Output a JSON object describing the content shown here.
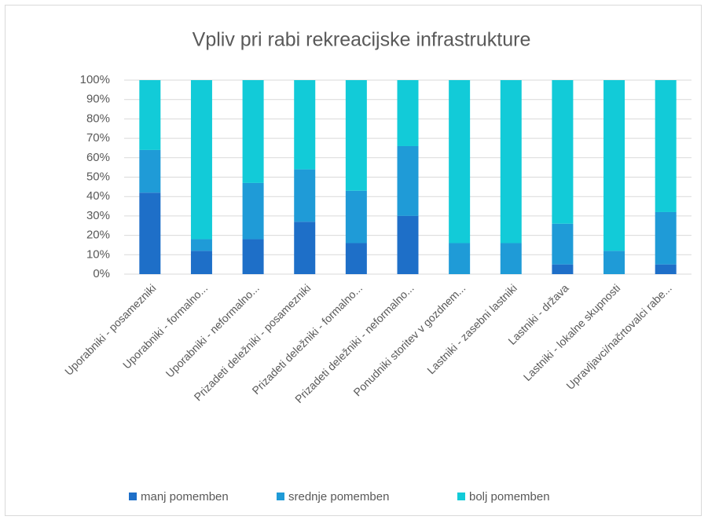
{
  "chart_data": {
    "type": "stacked_bar",
    "title": "Vpliv pri rabi rekreacijske infrastrukture",
    "categories": [
      "Uporabniki - posamezniki",
      "Uporabniki - formalno...",
      "Uporabniki - neformalno...",
      "Prizadeti deležniki - posamezniki",
      "Prizadeti deležniki - formalno...",
      "Prizadeti deležniki - neformalno...",
      "Ponudniki storitev v gozdnem...",
      "Lastniki - zasebni lastniki",
      "Lastniki - država",
      "Lastniki - lokalne skupnosti",
      "Upravljavci/načrtovalci rabe..."
    ],
    "series": [
      {
        "name": "manj pomemben",
        "color": "#1e6fc8",
        "values": [
          42,
          12,
          18,
          27,
          16,
          30,
          0,
          0,
          5,
          0,
          5
        ]
      },
      {
        "name": "srednje pomemben",
        "color": "#1f9bd7",
        "values": [
          22,
          6,
          29,
          27,
          27,
          36,
          16,
          16,
          21,
          12,
          27
        ]
      },
      {
        "name": "bolj pomemben",
        "color": "#12cbd8",
        "values": [
          36,
          82,
          53,
          46,
          57,
          34,
          84,
          84,
          74,
          88,
          68
        ]
      }
    ],
    "ylim": [
      0,
      100
    ],
    "yticks": [
      {
        "value": 0,
        "label": "0%"
      },
      {
        "value": 10,
        "label": "10%"
      },
      {
        "value": 20,
        "label": "20%"
      },
      {
        "value": 30,
        "label": "30%"
      },
      {
        "value": 40,
        "label": "40%"
      },
      {
        "value": 50,
        "label": "50%"
      },
      {
        "value": 60,
        "label": "60%"
      },
      {
        "value": 70,
        "label": "70%"
      },
      {
        "value": 80,
        "label": "80%"
      },
      {
        "value": 90,
        "label": "90%"
      },
      {
        "value": 100,
        "label": "100%"
      }
    ],
    "grid": true,
    "legend": "bottom"
  }
}
